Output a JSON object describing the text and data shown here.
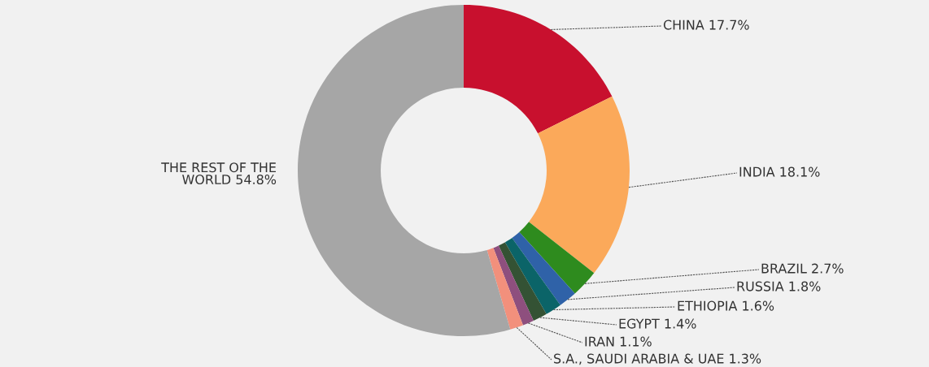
{
  "chart_data": {
    "type": "donut",
    "categories": [
      "CHINA",
      "INDIA",
      "BRAZIL",
      "RUSSIA",
      "ETHIOPIA",
      "EGYPT",
      "IRAN",
      "S.A., SAUDI ARABIA & UAE",
      "THE REST OF THE WORLD"
    ],
    "values": [
      17.7,
      18.1,
      2.7,
      1.8,
      1.6,
      1.4,
      1.1,
      1.3,
      54.8
    ],
    "value_labels": [
      "17.7%",
      "18.1%",
      "2.7%",
      "1.8%",
      "1.6%",
      "1.4%",
      "1.1%",
      "1.3%",
      "54.8%"
    ],
    "colors": [
      "#c8102e",
      "#fba95a",
      "#2e8b1e",
      "#2f62a8",
      "#0b6468",
      "#345234",
      "#8e4f7e",
      "#f2907c",
      "#a6a6a6"
    ],
    "legend": false
  }
}
